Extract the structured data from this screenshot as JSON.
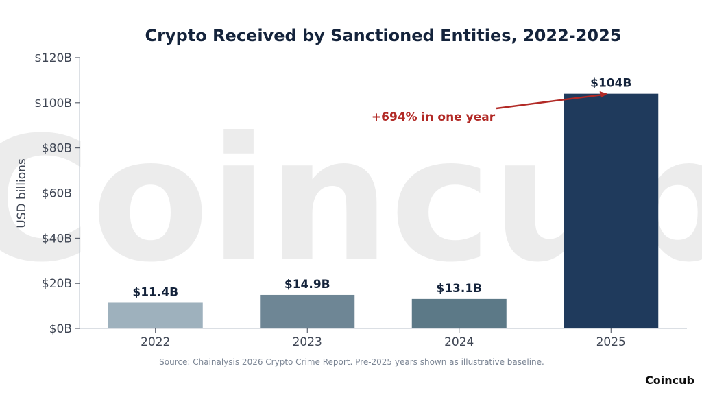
{
  "chart_data": {
    "type": "bar",
    "title": "Crypto Received by Sanctioned Entities, 2022-2025",
    "xlabel": "",
    "ylabel": "USD billions",
    "categories": [
      "2022",
      "2023",
      "2024",
      "2025"
    ],
    "values": [
      11.4,
      14.9,
      13.1,
      104
    ],
    "data_labels": [
      "$11.4B",
      "$14.9B",
      "$13.1B",
      "$104B"
    ],
    "bar_colors": [
      "#9eb1bd",
      "#6e8695",
      "#5c7987",
      "#1f3a5c"
    ],
    "ylim": [
      0,
      120
    ],
    "yticks": [
      0,
      20,
      40,
      60,
      80,
      100,
      120
    ],
    "ytick_labels": [
      "$0B",
      "$20B",
      "$40B",
      "$60B",
      "$80B",
      "$100B",
      "$120B"
    ],
    "grid": false,
    "legend": "none",
    "annotation": {
      "text": "+694% in one year",
      "points_to_category": "2025",
      "points_to_value": 104,
      "color": "#b22a26"
    }
  },
  "source_note": "Source: Chainalysis 2026 Crypto Crime Report. Pre-2025 years shown as illustrative baseline.",
  "watermark_text": "Coincub",
  "brand": "Coincub",
  "colors": {
    "title": "#14233b",
    "axis": "#c5ccd4",
    "tick_text": "#3f4654",
    "annotation": "#b22a26"
  }
}
